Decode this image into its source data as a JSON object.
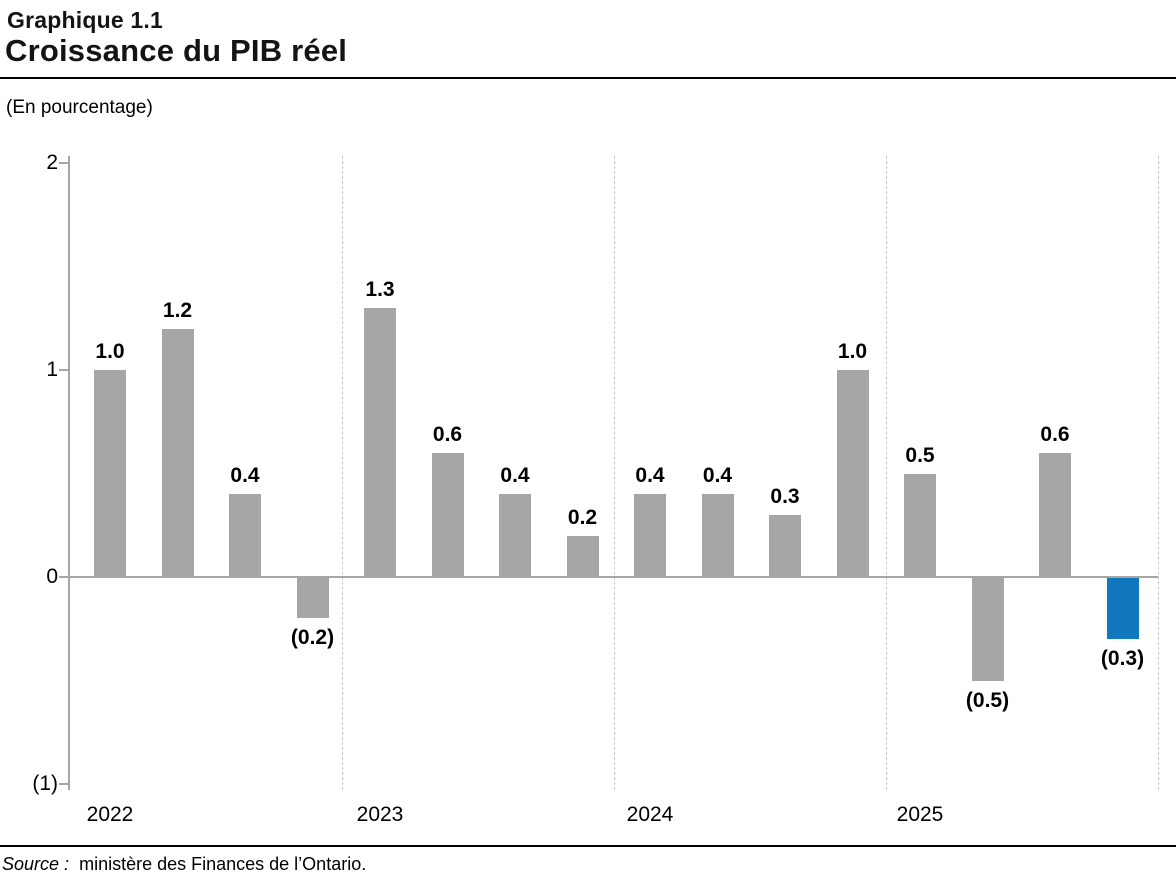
{
  "header": {
    "figure_label": "Graphique 1.1",
    "title": "Croissance du PIB réel",
    "unit_label": "(En pourcentage)"
  },
  "footer": {
    "source_prefix": "Source :",
    "source_text": "ministère des Finances de l’Ontario."
  },
  "chart_data": {
    "type": "bar",
    "title": "Croissance du PIB réel",
    "ylabel": "(En pourcentage)",
    "ylim": [
      -1,
      2
    ],
    "grid": "dashed vertical separators between year groups",
    "legend": "none",
    "yticks": [
      {
        "value": 2,
        "label": "2"
      },
      {
        "value": 1,
        "label": "1"
      },
      {
        "value": 0,
        "label": "0"
      },
      {
        "value": -1,
        "label": "(1)"
      }
    ],
    "groups": [
      {
        "year": "2022",
        "values": [
          1.0,
          1.2,
          0.4,
          -0.2
        ],
        "labels": [
          "1.0",
          "1.2",
          "0.4",
          "(0.2)"
        ]
      },
      {
        "year": "2023",
        "values": [
          1.3,
          0.6,
          0.4,
          0.2
        ],
        "labels": [
          "1.3",
          "0.6",
          "0.4",
          "0.2"
        ]
      },
      {
        "year": "2024",
        "values": [
          0.4,
          0.4,
          0.3,
          1.0
        ],
        "labels": [
          "0.4",
          "0.4",
          "0.3",
          "1.0"
        ]
      },
      {
        "year": "2025",
        "values": [
          0.5,
          -0.5,
          0.6,
          -0.3
        ],
        "labels": [
          "0.5",
          "(0.5)",
          "0.6",
          "(0.3)"
        ]
      }
    ],
    "highlight": {
      "group_index": 3,
      "bar_index": 3
    },
    "colors": {
      "bar": "#a6a6a6",
      "highlight_bar": "#1178be",
      "axis": "#a6a6a6",
      "separator": "#c7c7c7",
      "data_label": "#000000"
    }
  }
}
